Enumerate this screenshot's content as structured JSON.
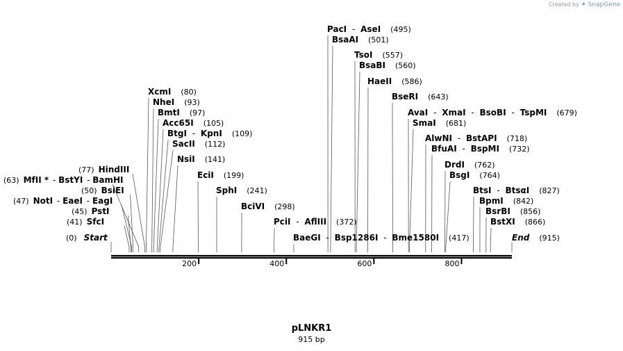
{
  "credit": {
    "prefix": "Created by",
    "brand": "SnapGene"
  },
  "plasmid": {
    "name": "pLNKR1",
    "size": "915 bp",
    "length": 915
  },
  "ruler": {
    "ticks": [
      "200",
      "400",
      "600",
      "800"
    ],
    "tick_values": [
      200,
      400,
      600,
      800
    ]
  },
  "start": {
    "name": "Start",
    "pos": "(0)",
    "value": 0
  },
  "end": {
    "name": "End",
    "pos": "(915)",
    "value": 915
  },
  "sites": [
    {
      "names": [
        "SfcI"
      ],
      "pos": "(41)",
      "value": 41,
      "side": "left"
    },
    {
      "names": [
        "PstI"
      ],
      "pos": "(45)",
      "value": 45,
      "side": "left"
    },
    {
      "names": [
        "NotI",
        "EaeI",
        "EagI"
      ],
      "pos": "(47)",
      "value": 47,
      "side": "left"
    },
    {
      "names": [
        "BsiEI"
      ],
      "pos": "(50)",
      "value": 50,
      "side": "left"
    },
    {
      "names": [
        "MfII *",
        "BstYI",
        "BamHI"
      ],
      "pos": "(63)",
      "value": 63,
      "side": "left"
    },
    {
      "names": [
        "HindIII"
      ],
      "pos": "(77)",
      "value": 77,
      "side": "left"
    },
    {
      "names": [
        "XcmI"
      ],
      "pos": "(80)",
      "value": 80,
      "side": "right"
    },
    {
      "names": [
        "NheI"
      ],
      "pos": "(93)",
      "value": 93,
      "side": "right"
    },
    {
      "names": [
        "BmtI"
      ],
      "pos": "(97)",
      "value": 97,
      "side": "right"
    },
    {
      "names": [
        "Acc65I"
      ],
      "pos": "(105)",
      "value": 105,
      "side": "right"
    },
    {
      "names": [
        "BtgI",
        "KpnI"
      ],
      "pos": "(109)",
      "value": 109,
      "side": "right"
    },
    {
      "names": [
        "SacII"
      ],
      "pos": "(112)",
      "value": 112,
      "side": "right"
    },
    {
      "names": [
        "NsiI"
      ],
      "pos": "(141)",
      "value": 141,
      "side": "right"
    },
    {
      "names": [
        "EciI"
      ],
      "pos": "(199)",
      "value": 199,
      "side": "right"
    },
    {
      "names": [
        "SphI"
      ],
      "pos": "(241)",
      "value": 241,
      "side": "right"
    },
    {
      "names": [
        "BciVI"
      ],
      "pos": "(298)",
      "value": 298,
      "side": "right"
    },
    {
      "names": [
        "PciI",
        "AflIII"
      ],
      "pos": "(372)",
      "value": 372,
      "side": "right"
    },
    {
      "names": [
        "BaeGI",
        "Bsp1286I",
        "Bme1580I"
      ],
      "pos": "(417)",
      "value": 417,
      "side": "right"
    },
    {
      "names": [
        "PacI",
        "AseI"
      ],
      "pos": "(495)",
      "value": 495,
      "side": "right"
    },
    {
      "names": [
        "BsaAI"
      ],
      "pos": "(501)",
      "value": 501,
      "side": "right"
    },
    {
      "names": [
        "TsoI"
      ],
      "pos": "(557)",
      "value": 557,
      "side": "right"
    },
    {
      "names": [
        "BsaBI"
      ],
      "pos": "(560)",
      "value": 560,
      "side": "right"
    },
    {
      "names": [
        "HaeII"
      ],
      "pos": "(586)",
      "value": 586,
      "side": "right"
    },
    {
      "names": [
        "BseRI"
      ],
      "pos": "(643)",
      "value": 643,
      "side": "right"
    },
    {
      "names": [
        "AvaI",
        "XmaI",
        "BsoBI",
        "TspMI"
      ],
      "pos": "(679)",
      "value": 679,
      "side": "right"
    },
    {
      "names": [
        "SmaI"
      ],
      "pos": "(681)",
      "value": 681,
      "side": "right"
    },
    {
      "names": [
        "AlwNI",
        "BstAPI"
      ],
      "pos": "(718)",
      "value": 718,
      "side": "right"
    },
    {
      "names": [
        "BfuAI",
        "BspMI"
      ],
      "pos": "(732)",
      "value": 732,
      "side": "right"
    },
    {
      "names": [
        "DrdI"
      ],
      "pos": "(762)",
      "value": 762,
      "side": "right"
    },
    {
      "names": [
        "BsgI"
      ],
      "pos": "(764)",
      "value": 764,
      "side": "right"
    },
    {
      "names": [
        "BtsI",
        "BtsαI"
      ],
      "pos": "(827)",
      "value": 827,
      "side": "right"
    },
    {
      "names": [
        "BpmI"
      ],
      "pos": "(842)",
      "value": 842,
      "side": "right"
    },
    {
      "names": [
        "BsrBI"
      ],
      "pos": "(856)",
      "value": 856,
      "side": "right"
    },
    {
      "names": [
        "BstXI"
      ],
      "pos": "(866)",
      "value": 866,
      "side": "right"
    }
  ]
}
